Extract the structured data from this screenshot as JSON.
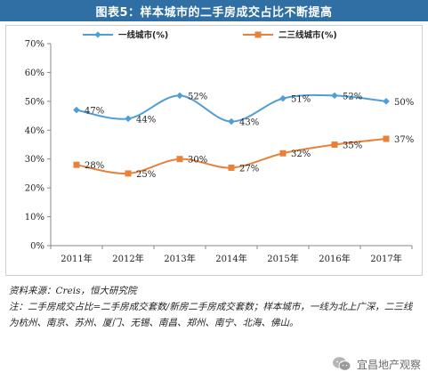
{
  "header": {
    "title": "图表5：样本城市的二手房成交占比不断提高"
  },
  "chart_data": {
    "type": "line",
    "categories": [
      "2011年",
      "2012年",
      "2013年",
      "2014年",
      "2015年",
      "2016年",
      "2017年"
    ],
    "series": [
      {
        "name": "一线城市(%)",
        "color": "#4f9ed6",
        "marker": "diamond",
        "values": [
          47,
          44,
          52,
          43,
          51,
          52,
          50
        ],
        "labels": [
          "47%",
          "44%",
          "52%",
          "43%",
          "51%",
          "52%",
          "50%"
        ]
      },
      {
        "name": "二三线城市(%)",
        "color": "#e8823a",
        "marker": "square",
        "values": [
          28,
          25,
          30,
          27,
          32,
          35,
          37
        ],
        "labels": [
          "28%",
          "25%",
          "30%",
          "27%",
          "32%",
          "35%",
          "37%"
        ]
      }
    ],
    "yticks": [
      "0%",
      "10%",
      "20%",
      "30%",
      "40%",
      "50%",
      "60%",
      "70%"
    ],
    "ylim": [
      0,
      70
    ],
    "grid": false,
    "legend": "top"
  },
  "notes": {
    "source": "资料来源：Creis，恒大研究院",
    "note": "注：二手房成交占比=二手房成交套数/新房二手房成交套数；样本城市，一线为北上广深，二三线为杭州、南京、苏州、厦门、无锡、南昌、郑州、南宁、北海、佛山。"
  },
  "watermark": {
    "text": "宜昌地产观察",
    "icon": "wechat-icon"
  }
}
